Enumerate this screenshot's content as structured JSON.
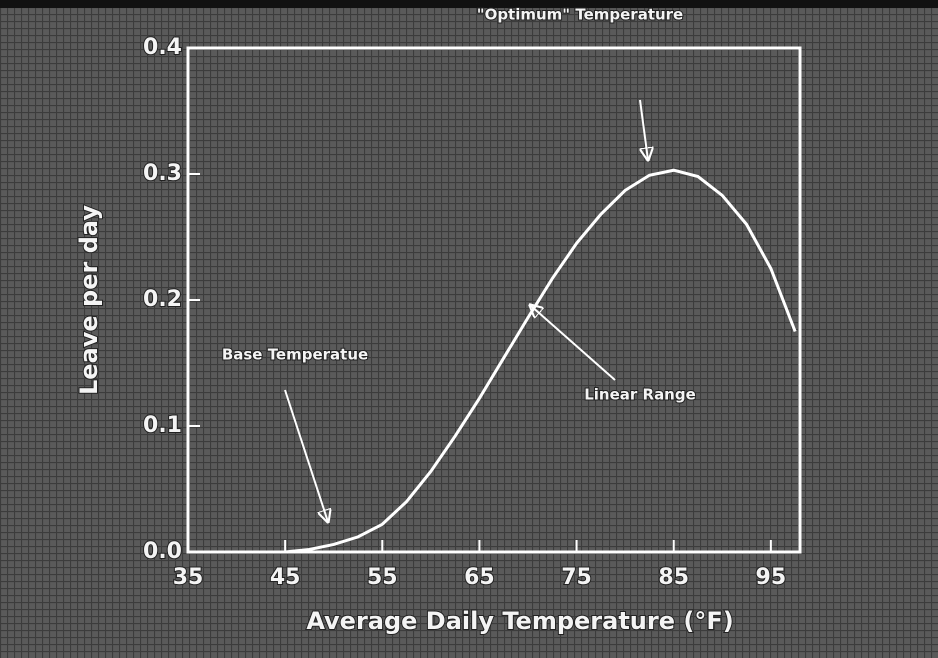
{
  "chart_data": {
    "type": "line",
    "x": [
      45,
      47.5,
      50,
      52.5,
      55,
      57.5,
      60,
      62.5,
      65,
      67.5,
      70,
      72.5,
      75,
      77.5,
      80,
      82.5,
      85,
      87.5,
      90,
      92.5,
      95,
      97.5
    ],
    "values": [
      0,
      0.002,
      0.006,
      0.012,
      0.022,
      0.04,
      0.064,
      0.092,
      0.122,
      0.154,
      0.186,
      0.217,
      0.245,
      0.268,
      0.287,
      0.299,
      0.303,
      0.298,
      0.283,
      0.26,
      0.225,
      0.175
    ],
    "color": "#ffffff",
    "xlabel": "Average Daily Temperature (°F)",
    "ylabel": "Leave per day",
    "xlim": [
      35,
      98
    ],
    "ylim": [
      0,
      0.4
    ],
    "xticks": [
      35,
      45,
      55,
      65,
      75,
      85,
      95
    ],
    "yticks": [
      {
        "value": 0,
        "label": "0.0"
      },
      0.1,
      0.2,
      0.3,
      0.4
    ],
    "annotations": [
      "\"Optimum\" Temperature",
      "Linear Range",
      "Base Temperatue"
    ]
  }
}
